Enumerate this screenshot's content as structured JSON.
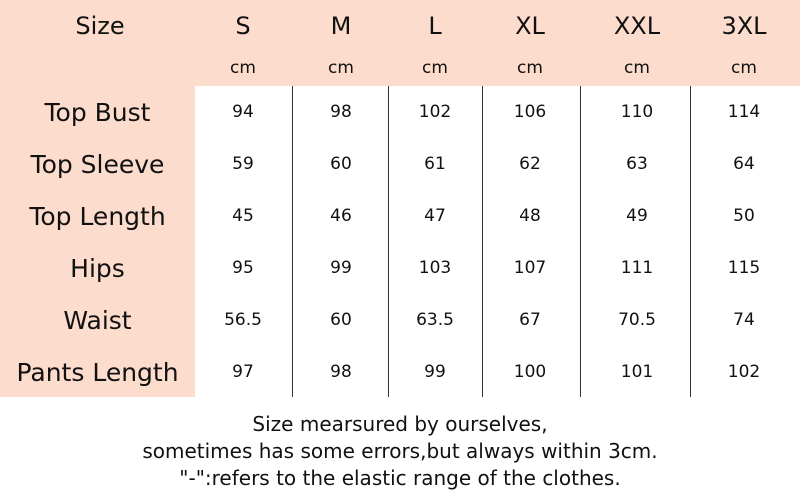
{
  "table": {
    "header": [
      "Size",
      "S",
      "M",
      "L",
      "XL",
      "XXL",
      "3XL"
    ],
    "units": [
      "cm",
      "cm",
      "cm",
      "cm",
      "cm",
      "cm"
    ],
    "rows": [
      {
        "label": "Top Bust",
        "values": [
          94,
          98,
          102,
          106,
          110,
          114
        ]
      },
      {
        "label": "Top Sleeve",
        "values": [
          59,
          60,
          61,
          62,
          63,
          64
        ]
      },
      {
        "label": "Top Length",
        "values": [
          45,
          46,
          47,
          48,
          49,
          50
        ]
      },
      {
        "label": "Hips",
        "values": [
          95,
          99,
          103,
          107,
          111,
          115
        ]
      },
      {
        "label": "Waist",
        "values": [
          56.5,
          60,
          63.5,
          67,
          70.5,
          74
        ]
      },
      {
        "label": "Pants Length",
        "values": [
          97,
          98,
          99,
          100,
          101,
          102
        ]
      }
    ]
  },
  "notes": [
    "Size mearsured by ourselves,",
    "sometimes has some errors,but always within 3cm.",
    "\"-\":refers to the elastic range of the clothes."
  ]
}
